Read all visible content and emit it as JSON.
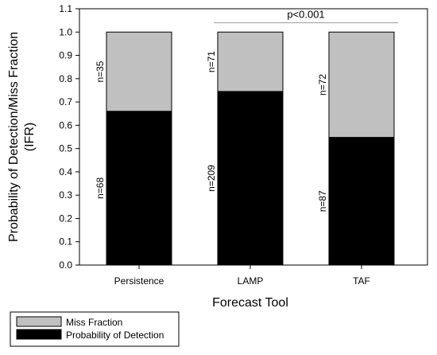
{
  "chart_data": {
    "type": "bar",
    "stacked": true,
    "title": "",
    "xlabel": "Forecast Tool",
    "ylabel_line1": "Probability of Detection/Miss Fraction",
    "ylabel_line2": "(IFR)",
    "ylim": [
      0,
      1.1
    ],
    "yticks": [
      "0.0",
      "0.1",
      "0.2",
      "0.3",
      "0.4",
      "0.5",
      "0.6",
      "0.7",
      "0.8",
      "0.9",
      "1.0",
      "1.1"
    ],
    "grid": false,
    "legend_position": "bottom-left",
    "categories": [
      "Persistence",
      "LAMP",
      "TAF"
    ],
    "series": [
      {
        "name": "Probability of Detection",
        "color": "#000000",
        "values": [
          0.66,
          0.745,
          0.548
        ],
        "labels": [
          "n=68",
          "n=209",
          "n=87"
        ]
      },
      {
        "name": "Miss Fraction",
        "color": "#c0c0c0",
        "values": [
          0.34,
          0.255,
          0.452
        ],
        "labels": [
          "n=35",
          "n=71",
          "n=72"
        ]
      }
    ],
    "legend_order": [
      "Miss Fraction",
      "Probability of Detection"
    ],
    "annotation": {
      "text": "p<0.001",
      "from_category": "LAMP",
      "to_category": "TAF"
    }
  }
}
